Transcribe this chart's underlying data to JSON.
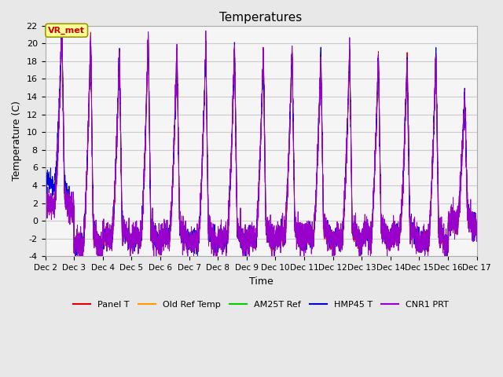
{
  "title": "Temperatures",
  "xlabel": "Time",
  "ylabel": "Temperature (C)",
  "ylim": [
    -4,
    22
  ],
  "yticks": [
    -4,
    -2,
    0,
    2,
    4,
    6,
    8,
    10,
    12,
    14,
    16,
    18,
    20,
    22
  ],
  "xlim_days": [
    2,
    17
  ],
  "annotation_text": "VR_met",
  "annotation_color": "#cc0000",
  "annotation_bg": "#ffff99",
  "annotation_edge": "#999900",
  "series": [
    {
      "name": "Panel T",
      "color": "#dd0000"
    },
    {
      "name": "Old Ref Temp",
      "color": "#ff9900"
    },
    {
      "name": "AM25T Ref",
      "color": "#00cc00"
    },
    {
      "name": "HMP45 T",
      "color": "#0000dd"
    },
    {
      "name": "CNR1 PRT",
      "color": "#9900cc"
    }
  ],
  "bg_color": "#e8e8e8",
  "plot_bg_color": "#f5f5f5",
  "grid_color": "#cccccc",
  "peak_heights": [
    21.5,
    20.8,
    19.2,
    20.9,
    19.5,
    19.8,
    19.6,
    19.3,
    19.7,
    19.0,
    19.4,
    18.8,
    18.5,
    19.2,
    14.5
  ],
  "trough_depths": [
    1.0,
    -3.5,
    -2.5,
    -2.8,
    -2.5,
    -3.0,
    -2.8,
    -2.7,
    -2.5,
    -2.5,
    -2.8,
    -2.5,
    -2.3,
    -3.0,
    -1.0
  ]
}
